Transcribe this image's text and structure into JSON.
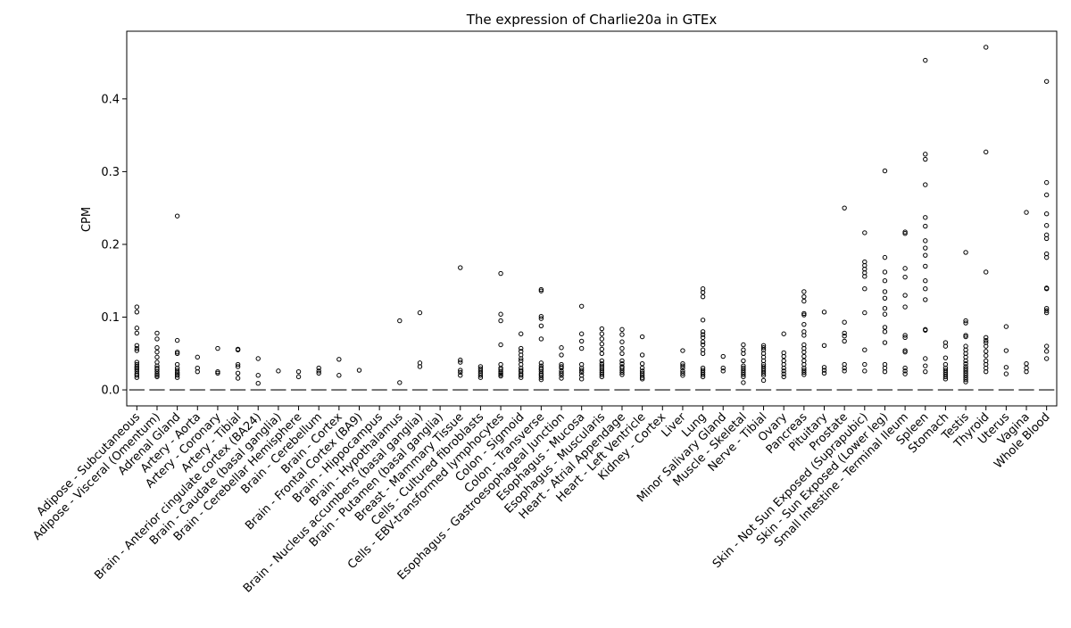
{
  "chart_data": {
    "type": "box",
    "title": "The expression of Charlie20a in GTEx",
    "xlabel": "",
    "ylabel": "CPM",
    "ylim": [
      -0.022,
      0.493
    ],
    "yticks": [
      0.0,
      0.1,
      0.2,
      0.3,
      0.4
    ],
    "ytick_labels": [
      "0.0",
      "0.1",
      "0.2",
      "0.3",
      "0.4"
    ],
    "median_color": "#555555",
    "outlier_color": "#000000",
    "categories": [
      "Adipose - Subcutaneous",
      "Adipose - Visceral (Omentum)",
      "Adrenal Gland",
      "Artery - Aorta",
      "Artery - Coronary",
      "Artery - Tibial",
      "Brain - Anterior cingulate cortex (BA24)",
      "Brain - Caudate (basal ganglia)",
      "Brain - Cerebellar Hemisphere",
      "Brain - Cerebellum",
      "Brain - Cortex",
      "Brain - Frontal Cortex (BA9)",
      "Brain - Hippocampus",
      "Brain - Hypothalamus",
      "Brain - Nucleus accumbens (basal ganglia)",
      "Brain - Putamen (basal ganglia)",
      "Breast - Mammary Tissue",
      "Cells - Cultured fibroblasts",
      "Cells - EBV-transformed lymphocytes",
      "Colon - Sigmoid",
      "Colon - Transverse",
      "Esophagus - Gastroesophageal Junction",
      "Esophagus - Mucosa",
      "Esophagus - Muscularis",
      "Heart - Atrial Appendage",
      "Heart - Left Ventricle",
      "Kidney - Cortex",
      "Liver",
      "Lung",
      "Minor Salivary Gland",
      "Muscle - Skeletal",
      "Nerve - Tibial",
      "Ovary",
      "Pancreas",
      "Pituitary",
      "Prostate",
      "Skin - Not Sun Exposed (Suprapubic)",
      "Skin - Sun Exposed (Lower leg)",
      "Small Intestine - Terminal Ileum",
      "Spleen",
      "Stomach",
      "Testis",
      "Thyroid",
      "Uterus",
      "Vagina",
      "Whole Blood"
    ],
    "medians": [
      0,
      0,
      0,
      0,
      0,
      0,
      0,
      0,
      0,
      0,
      0,
      0,
      0,
      0,
      0,
      0,
      0,
      0,
      0,
      0,
      0,
      0,
      0,
      0,
      0,
      0,
      0,
      0,
      0,
      0,
      0,
      0,
      0,
      0,
      0,
      0,
      0,
      0,
      0,
      0,
      0,
      0,
      0,
      0,
      0,
      0
    ],
    "outliers": [
      [
        0.114,
        0.107,
        0.085,
        0.078,
        0.061,
        0.057,
        0.054,
        0.038,
        0.035,
        0.032,
        0.03,
        0.028,
        0.025,
        0.022,
        0.02,
        0.017
      ],
      [
        0.078,
        0.07,
        0.058,
        0.052,
        0.045,
        0.038,
        0.033,
        0.03,
        0.028,
        0.025,
        0.022,
        0.02,
        0.018
      ],
      [
        0.239,
        0.068,
        0.052,
        0.05,
        0.035,
        0.03,
        0.027,
        0.024,
        0.022,
        0.02,
        0.017
      ],
      [
        0.045,
        0.03,
        0.025
      ],
      [
        0.057,
        0.025,
        0.023
      ],
      [
        0.056,
        0.055,
        0.035,
        0.032,
        0.023,
        0.016
      ],
      [
        0.043,
        0.02,
        0.009
      ],
      [
        0.026
      ],
      [
        0.025,
        0.018
      ],
      [
        0.03,
        0.026,
        0.023
      ],
      [
        0.042,
        0.02
      ],
      [
        0.027
      ],
      [],
      [
        0.095,
        0.01
      ],
      [
        0.106,
        0.037,
        0.032
      ],
      [],
      [
        0.168,
        0.041,
        0.038,
        0.027,
        0.024,
        0.02
      ],
      [
        0.032,
        0.029,
        0.026,
        0.023,
        0.02,
        0.017
      ],
      [
        0.16,
        0.104,
        0.095,
        0.062,
        0.035,
        0.03,
        0.028,
        0.025,
        0.023,
        0.021,
        0.019
      ],
      [
        0.077,
        0.057,
        0.053,
        0.048,
        0.043,
        0.04,
        0.035,
        0.03,
        0.027,
        0.025,
        0.022,
        0.02,
        0.017
      ],
      [
        0.138,
        0.136,
        0.101,
        0.098,
        0.088,
        0.07,
        0.037,
        0.033,
        0.03,
        0.028,
        0.025,
        0.022,
        0.02,
        0.017,
        0.014
      ],
      [
        0.058,
        0.048,
        0.035,
        0.032,
        0.03,
        0.026,
        0.023,
        0.02,
        0.016
      ],
      [
        0.115,
        0.077,
        0.067,
        0.057,
        0.035,
        0.03,
        0.027,
        0.024,
        0.02,
        0.015
      ],
      [
        0.084,
        0.077,
        0.07,
        0.063,
        0.056,
        0.05,
        0.04,
        0.036,
        0.033,
        0.03,
        0.027,
        0.024,
        0.021,
        0.018
      ],
      [
        0.083,
        0.076,
        0.066,
        0.057,
        0.05,
        0.04,
        0.036,
        0.032,
        0.03,
        0.027,
        0.024,
        0.021
      ],
      [
        0.073,
        0.048,
        0.036,
        0.03,
        0.026,
        0.023,
        0.02,
        0.017,
        0.015
      ],
      [],
      [
        0.054,
        0.036,
        0.033,
        0.03,
        0.026,
        0.023,
        0.02
      ],
      [
        0.139,
        0.134,
        0.128,
        0.096,
        0.08,
        0.076,
        0.072,
        0.066,
        0.062,
        0.055,
        0.05,
        0.03,
        0.027,
        0.024,
        0.021,
        0.018
      ],
      [
        0.046,
        0.03,
        0.026
      ],
      [
        0.062,
        0.055,
        0.05,
        0.04,
        0.033,
        0.03,
        0.027,
        0.024,
        0.021,
        0.018,
        0.01
      ],
      [
        0.061,
        0.058,
        0.055,
        0.05,
        0.045,
        0.04,
        0.035,
        0.032,
        0.029,
        0.026,
        0.023,
        0.02,
        0.013
      ],
      [
        0.077,
        0.051,
        0.046,
        0.04,
        0.035,
        0.03,
        0.026,
        0.022,
        0.018
      ],
      [
        0.135,
        0.128,
        0.122,
        0.105,
        0.103,
        0.09,
        0.08,
        0.075,
        0.062,
        0.057,
        0.052,
        0.046,
        0.04,
        0.035,
        0.03,
        0.027,
        0.024,
        0.021
      ],
      [
        0.107,
        0.061,
        0.031,
        0.027,
        0.023
      ],
      [
        0.25,
        0.093,
        0.078,
        0.074,
        0.067,
        0.035,
        0.03,
        0.026
      ],
      [
        0.216,
        0.176,
        0.171,
        0.166,
        0.161,
        0.156,
        0.139,
        0.106,
        0.055,
        0.035,
        0.026
      ],
      [
        0.301,
        0.182,
        0.162,
        0.15,
        0.135,
        0.126,
        0.112,
        0.104,
        0.086,
        0.08,
        0.065,
        0.035,
        0.03,
        0.025
      ],
      [
        0.217,
        0.215,
        0.167,
        0.155,
        0.13,
        0.114,
        0.075,
        0.072,
        0.054,
        0.052,
        0.03,
        0.026,
        0.022
      ],
      [
        0.453,
        0.324,
        0.317,
        0.282,
        0.237,
        0.225,
        0.205,
        0.195,
        0.185,
        0.17,
        0.15,
        0.139,
        0.124,
        0.083,
        0.082,
        0.043,
        0.033,
        0.025
      ],
      [
        0.065,
        0.06,
        0.044,
        0.035,
        0.03,
        0.027,
        0.024,
        0.021,
        0.018,
        0.015
      ],
      [
        0.189,
        0.095,
        0.092,
        0.075,
        0.073,
        0.06,
        0.055,
        0.05,
        0.045,
        0.04,
        0.036,
        0.032,
        0.029,
        0.026,
        0.023,
        0.02,
        0.017,
        0.014,
        0.011
      ],
      [
        0.471,
        0.327,
        0.162,
        0.072,
        0.068,
        0.065,
        0.06,
        0.053,
        0.047,
        0.04,
        0.035,
        0.03,
        0.025
      ],
      [
        0.087,
        0.054,
        0.031,
        0.022
      ],
      [
        0.244,
        0.036,
        0.03,
        0.025
      ],
      [
        0.424,
        0.285,
        0.268,
        0.242,
        0.226,
        0.213,
        0.208,
        0.187,
        0.182,
        0.14,
        0.139,
        0.112,
        0.109,
        0.106,
        0.06,
        0.053,
        0.043
      ]
    ],
    "grid": false,
    "legend": "none"
  }
}
